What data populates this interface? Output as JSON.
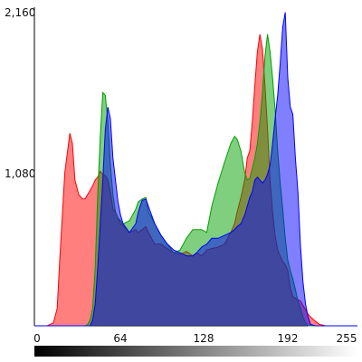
{
  "chart_data": {
    "type": "area",
    "title": "",
    "xlabel": "",
    "ylabel": "",
    "xlim": [
      0,
      255
    ],
    "ylim": [
      0,
      2160
    ],
    "x_ticks": [
      "0",
      "64",
      "128",
      "192",
      "255"
    ],
    "y_ticks": [
      "1,080",
      "2,160"
    ],
    "grid": false,
    "legend": "none",
    "x": [
      0,
      10,
      15,
      18,
      20,
      24,
      28,
      30,
      32,
      35,
      38,
      40,
      42,
      44,
      46,
      48,
      50,
      52,
      54,
      56,
      58,
      60,
      62,
      64,
      66,
      68,
      70,
      75,
      80,
      82,
      85,
      88,
      90,
      95,
      100,
      105,
      110,
      115,
      120,
      125,
      128,
      132,
      136,
      140,
      145,
      150,
      155,
      158,
      160,
      163,
      166,
      168,
      170,
      172,
      174,
      176,
      178,
      180,
      182,
      184,
      186,
      188,
      190,
      192,
      194,
      196,
      198,
      200,
      202,
      204,
      206,
      208,
      210,
      212,
      214,
      216,
      218,
      222,
      225,
      230,
      235,
      240,
      255
    ],
    "series": [
      {
        "name": "",
        "color": "#ff0000",
        "values": [
          0,
          0,
          20,
          120,
          450,
          1050,
          1320,
          1250,
          1000,
          900,
          870,
          870,
          900,
          930,
          960,
          1000,
          1020,
          1060,
          1040,
          1030,
          1000,
          920,
          800,
          780,
          740,
          700,
          690,
          640,
          660,
          640,
          660,
          680,
          640,
          560,
          560,
          530,
          500,
          490,
          510,
          480,
          500,
          480,
          520,
          530,
          540,
          560,
          640,
          700,
          780,
          880,
          1000,
          1150,
          1200,
          1400,
          1650,
          1880,
          2000,
          1900,
          1650,
          1350,
          1000,
          780,
          620,
          520,
          480,
          440,
          420,
          380,
          260,
          200,
          190,
          180,
          170,
          140,
          110,
          80,
          60,
          30,
          10,
          0,
          0,
          0,
          0
        ]
      },
      {
        "name": "",
        "color": "#00a000",
        "values": [
          0,
          0,
          0,
          0,
          0,
          0,
          0,
          0,
          0,
          0,
          0,
          0,
          10,
          40,
          120,
          400,
          900,
          1300,
          1600,
          1580,
          1400,
          1100,
          900,
          780,
          740,
          720,
          700,
          720,
          800,
          850,
          870,
          880,
          780,
          700,
          620,
          560,
          500,
          520,
          600,
          660,
          660,
          660,
          640,
          820,
          980,
          1120,
          1250,
          1300,
          1280,
          1200,
          1050,
          1000,
          1010,
          1080,
          1150,
          1250,
          1400,
          1600,
          1850,
          2000,
          1880,
          1700,
          1480,
          1200,
          980,
          800,
          600,
          450,
          380,
          320,
          250,
          170,
          120,
          60,
          20,
          0,
          0,
          0,
          0,
          0,
          0,
          0,
          0
        ]
      },
      {
        "name": "",
        "color": "#0000ff",
        "values": [
          0,
          0,
          0,
          0,
          0,
          0,
          0,
          0,
          0,
          0,
          0,
          0,
          0,
          0,
          40,
          150,
          400,
          700,
          1000,
          1350,
          1500,
          1420,
          1150,
          1000,
          850,
          760,
          700,
          640,
          700,
          780,
          860,
          870,
          820,
          700,
          620,
          560,
          520,
          500,
          480,
          480,
          500,
          540,
          560,
          600,
          600,
          620,
          640,
          660,
          680,
          700,
          760,
          820,
          880,
          920,
          1000,
          1020,
          1000,
          980,
          1000,
          1040,
          1100,
          1250,
          1420,
          1580,
          1800,
          2050,
          2150,
          1700,
          1500,
          1450,
          1150,
          920,
          550,
          300,
          150,
          60,
          10,
          0,
          0,
          0,
          0,
          0,
          0
        ]
      }
    ]
  }
}
